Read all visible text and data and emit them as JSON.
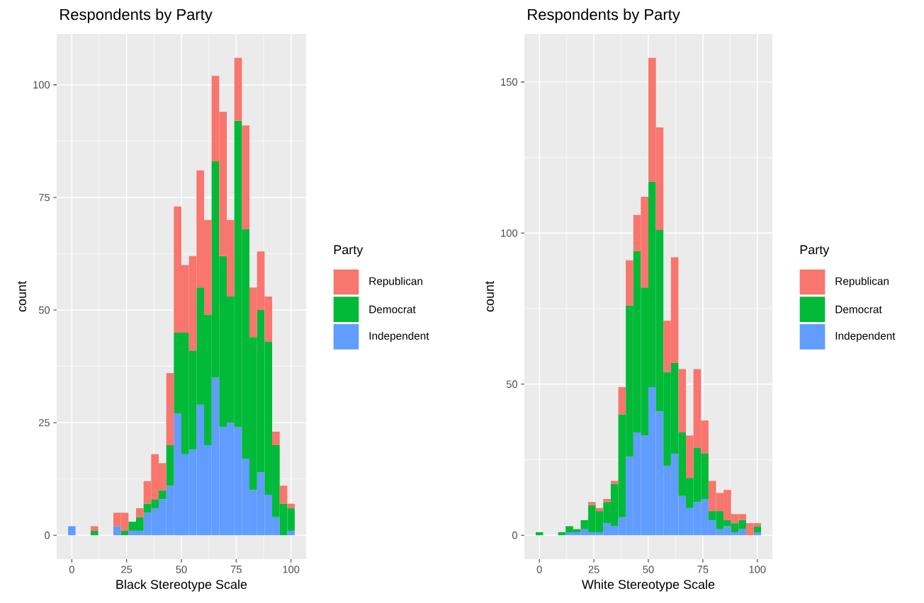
{
  "chart_data": [
    {
      "type": "bar",
      "title": "Respondents by Party",
      "xlabel": "Black Stereotype Scale",
      "ylabel": "count",
      "legend_title": "Party",
      "x": [
        0,
        3.4,
        6.9,
        10.3,
        13.8,
        17.2,
        20.7,
        24.1,
        27.6,
        31.0,
        34.5,
        37.9,
        41.4,
        44.8,
        48.3,
        51.7,
        55.2,
        58.6,
        62.1,
        65.5,
        69.0,
        72.4,
        75.9,
        79.3,
        82.8,
        86.2,
        89.7,
        93.1,
        96.6,
        100
      ],
      "series": [
        {
          "name": "Independent",
          "color": "#619cff",
          "values": [
            2,
            0,
            0,
            0,
            0,
            0,
            2,
            0,
            1,
            1,
            5,
            6,
            8,
            11,
            27,
            18,
            19,
            29,
            20,
            35,
            24,
            25,
            24,
            17,
            10,
            14,
            9,
            4,
            0,
            1
          ]
        },
        {
          "name": "Democrat",
          "color": "#00ba38",
          "values": [
            0,
            0,
            0,
            1,
            0,
            0,
            0,
            1,
            2,
            3,
            2,
            2,
            2,
            9,
            18,
            27,
            22,
            26,
            29,
            48,
            38,
            28,
            68,
            51,
            34,
            36,
            34,
            16,
            7,
            5
          ]
        },
        {
          "name": "Republican",
          "color": "#f8766d",
          "values": [
            0,
            0,
            0,
            1,
            0,
            0,
            3,
            4,
            0,
            2,
            5,
            10,
            6,
            16,
            28,
            15,
            21,
            26,
            21,
            19,
            32,
            17,
            14,
            23,
            11,
            13,
            10,
            3,
            4,
            1
          ]
        }
      ],
      "stacked": true,
      "xlim": [
        -6.9,
        106.9
      ],
      "ylim": [
        -5.3,
        111.3
      ],
      "xticks": [
        0,
        25,
        50,
        75,
        100
      ],
      "yticks": [
        0,
        25,
        50,
        75,
        100
      ],
      "grid": true,
      "legend": "right"
    },
    {
      "type": "bar",
      "title": "Respondents by Party",
      "xlabel": "White Stereotype Scale",
      "ylabel": "count",
      "legend_title": "Party",
      "x": [
        0,
        3.4,
        6.9,
        10.3,
        13.8,
        17.2,
        20.7,
        24.1,
        27.6,
        31.0,
        34.5,
        37.9,
        41.4,
        44.8,
        48.3,
        51.7,
        55.2,
        58.6,
        62.1,
        65.5,
        69.0,
        72.4,
        75.9,
        79.3,
        82.8,
        86.2,
        89.7,
        93.1,
        96.6,
        100
      ],
      "series": [
        {
          "name": "Independent",
          "color": "#619cff",
          "values": [
            0,
            0,
            0,
            0,
            1,
            1,
            2,
            1,
            1,
            4,
            3,
            6,
            26,
            34,
            33,
            49,
            41,
            23,
            27,
            13,
            9,
            11,
            12,
            5,
            2,
            3,
            1,
            2,
            0,
            1
          ]
        },
        {
          "name": "Democrat",
          "color": "#00ba38",
          "values": [
            1,
            0,
            0,
            1,
            2,
            1,
            3,
            9,
            7,
            7,
            14,
            34,
            50,
            60,
            49,
            68,
            60,
            31,
            30,
            21,
            10,
            18,
            15,
            3,
            6,
            2,
            3,
            3,
            0,
            2
          ]
        },
        {
          "name": "Republican",
          "color": "#f8766d",
          "values": [
            0,
            0,
            0,
            0,
            0,
            0,
            0,
            1,
            1,
            1,
            1,
            9,
            15,
            12,
            30,
            41,
            34,
            17,
            35,
            21,
            14,
            26,
            11,
            10,
            6,
            10,
            3,
            2,
            4,
            1
          ]
        }
      ],
      "stacked": true,
      "xlim": [
        -6.9,
        106.9
      ],
      "ylim": [
        -7.9,
        165.9
      ],
      "xticks": [
        0,
        25,
        50,
        75,
        100
      ],
      "yticks": [
        0,
        50,
        100,
        150
      ],
      "grid": true,
      "legend": "right"
    }
  ]
}
